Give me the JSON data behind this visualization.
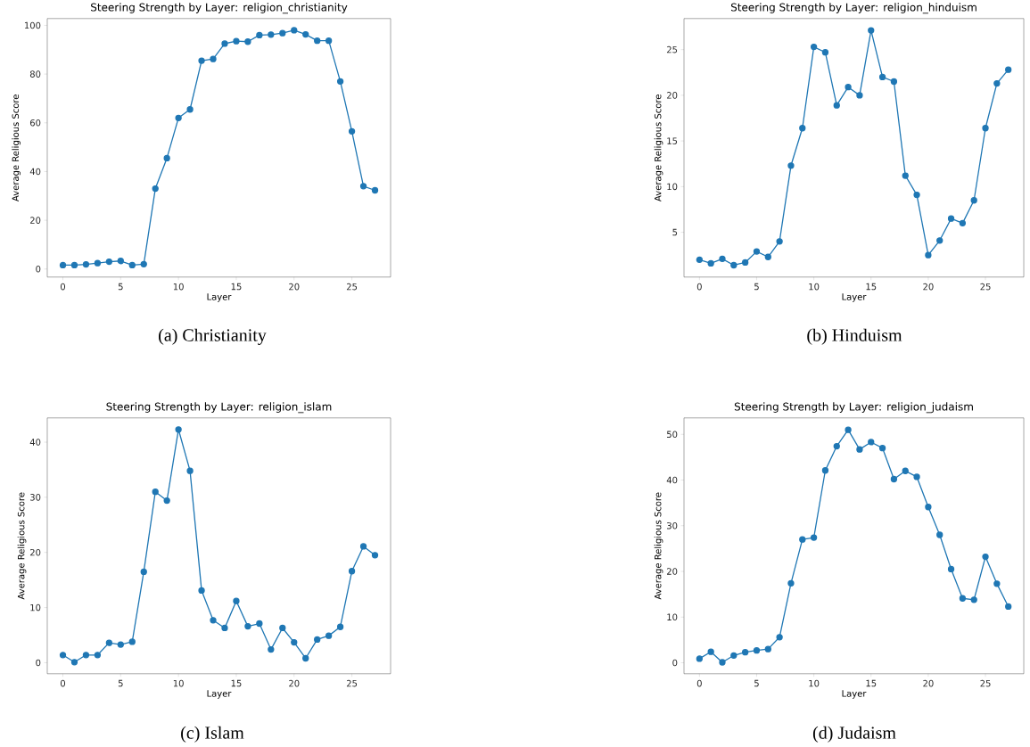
{
  "chart_data": [
    {
      "type": "line",
      "title": "Steering Strength by Layer: religion_christianity",
      "xlabel": "Layer",
      "ylabel": "Average Religious Score",
      "x": [
        0,
        1,
        2,
        3,
        4,
        5,
        6,
        7,
        8,
        9,
        10,
        11,
        12,
        13,
        14,
        15,
        16,
        17,
        18,
        19,
        20,
        21,
        22,
        23,
        24,
        25,
        26,
        27
      ],
      "values": [
        1.6,
        1.6,
        1.9,
        2.4,
        3.0,
        3.3,
        1.6,
        2.0,
        33,
        45.5,
        62,
        65.5,
        85.5,
        86.2,
        92.5,
        93.5,
        93.3,
        96,
        96.2,
        96.8,
        98,
        96.3,
        93.7,
        93.7,
        77,
        56.5,
        34,
        32.3
      ],
      "color": "#1f77b4",
      "marker": "circle",
      "line_style": "solid",
      "xlim": [
        -1.35,
        28.35
      ],
      "ylim": [
        -3.3,
        102.8
      ],
      "xticks": [
        0,
        5,
        10,
        15,
        20,
        25
      ],
      "yticks": [
        0,
        20,
        40,
        60,
        80,
        100
      ],
      "annotations": [
        "(a) Christianity"
      ]
    },
    {
      "type": "line",
      "title": "Steering Strength by Layer: religion_hinduism",
      "xlabel": "Layer",
      "ylabel": "Average Religious Score",
      "x": [
        0,
        1,
        2,
        3,
        4,
        5,
        6,
        7,
        8,
        9,
        10,
        11,
        12,
        13,
        14,
        15,
        16,
        17,
        18,
        19,
        20,
        21,
        22,
        23,
        24,
        25,
        26,
        27
      ],
      "values": [
        2.0,
        1.6,
        2.1,
        1.4,
        1.7,
        2.9,
        2.3,
        4.0,
        12.3,
        16.4,
        25.3,
        24.7,
        18.9,
        20.9,
        20.0,
        27.1,
        22.0,
        21.5,
        11.2,
        9.1,
        2.5,
        4.1,
        6.5,
        6.0,
        8.5,
        16.4,
        21.3,
        22.8
      ],
      "color": "#1f77b4",
      "marker": "circle",
      "line_style": "solid",
      "xlim": [
        -1.35,
        28.35
      ],
      "ylim": [
        0.1,
        28.4
      ],
      "xticks": [
        0,
        5,
        10,
        15,
        20,
        25
      ],
      "yticks": [
        5,
        10,
        15,
        20,
        25
      ],
      "annotations": [
        "(b) Hinduism"
      ]
    },
    {
      "type": "line",
      "title": "Steering Strength by Layer: religion_islam",
      "xlabel": "Layer",
      "ylabel": "Average Religious Score",
      "x": [
        0,
        1,
        2,
        3,
        4,
        5,
        6,
        7,
        8,
        9,
        10,
        11,
        12,
        13,
        14,
        15,
        16,
        17,
        18,
        19,
        20,
        21,
        22,
        23,
        24,
        25,
        26,
        27
      ],
      "values": [
        1.4,
        0.1,
        1.4,
        1.4,
        3.6,
        3.3,
        3.8,
        16.5,
        31,
        29.4,
        42.3,
        34.8,
        13.1,
        7.7,
        6.3,
        11.2,
        6.6,
        7.1,
        2.4,
        6.3,
        3.7,
        0.8,
        4.2,
        4.9,
        6.5,
        16.6,
        21.1,
        19.5
      ],
      "color": "#1f77b4",
      "marker": "circle",
      "line_style": "solid",
      "xlim": [
        -1.35,
        28.35
      ],
      "ylim": [
        -2.0,
        44.4
      ],
      "xticks": [
        0,
        5,
        10,
        15,
        20,
        25
      ],
      "yticks": [
        0,
        10,
        20,
        30,
        40
      ],
      "annotations": [
        "(c) Islam"
      ]
    },
    {
      "type": "line",
      "title": "Steering Strength by Layer: religion_judaism",
      "xlabel": "Layer",
      "ylabel": "Average Religious Score",
      "x": [
        0,
        1,
        2,
        3,
        4,
        5,
        6,
        7,
        8,
        9,
        10,
        11,
        12,
        13,
        14,
        15,
        16,
        17,
        18,
        19,
        20,
        21,
        22,
        23,
        24,
        25,
        26,
        27
      ],
      "values": [
        0.9,
        2.4,
        0.1,
        1.6,
        2.3,
        2.7,
        3.0,
        5.6,
        17.4,
        27.0,
        27.4,
        42.1,
        47.4,
        51.0,
        46.7,
        48.3,
        47.0,
        40.2,
        42.0,
        40.7,
        34.1,
        28.0,
        20.5,
        14.1,
        13.8,
        23.2,
        17.3,
        12.3
      ],
      "color": "#1f77b4",
      "marker": "circle",
      "line_style": "solid",
      "xlim": [
        -1.35,
        28.35
      ],
      "ylim": [
        -2.4,
        53.6
      ],
      "xticks": [
        0,
        5,
        10,
        15,
        20,
        25
      ],
      "yticks": [
        0,
        10,
        20,
        30,
        40,
        50
      ],
      "annotations": [
        "(d) Judaism"
      ]
    }
  ]
}
